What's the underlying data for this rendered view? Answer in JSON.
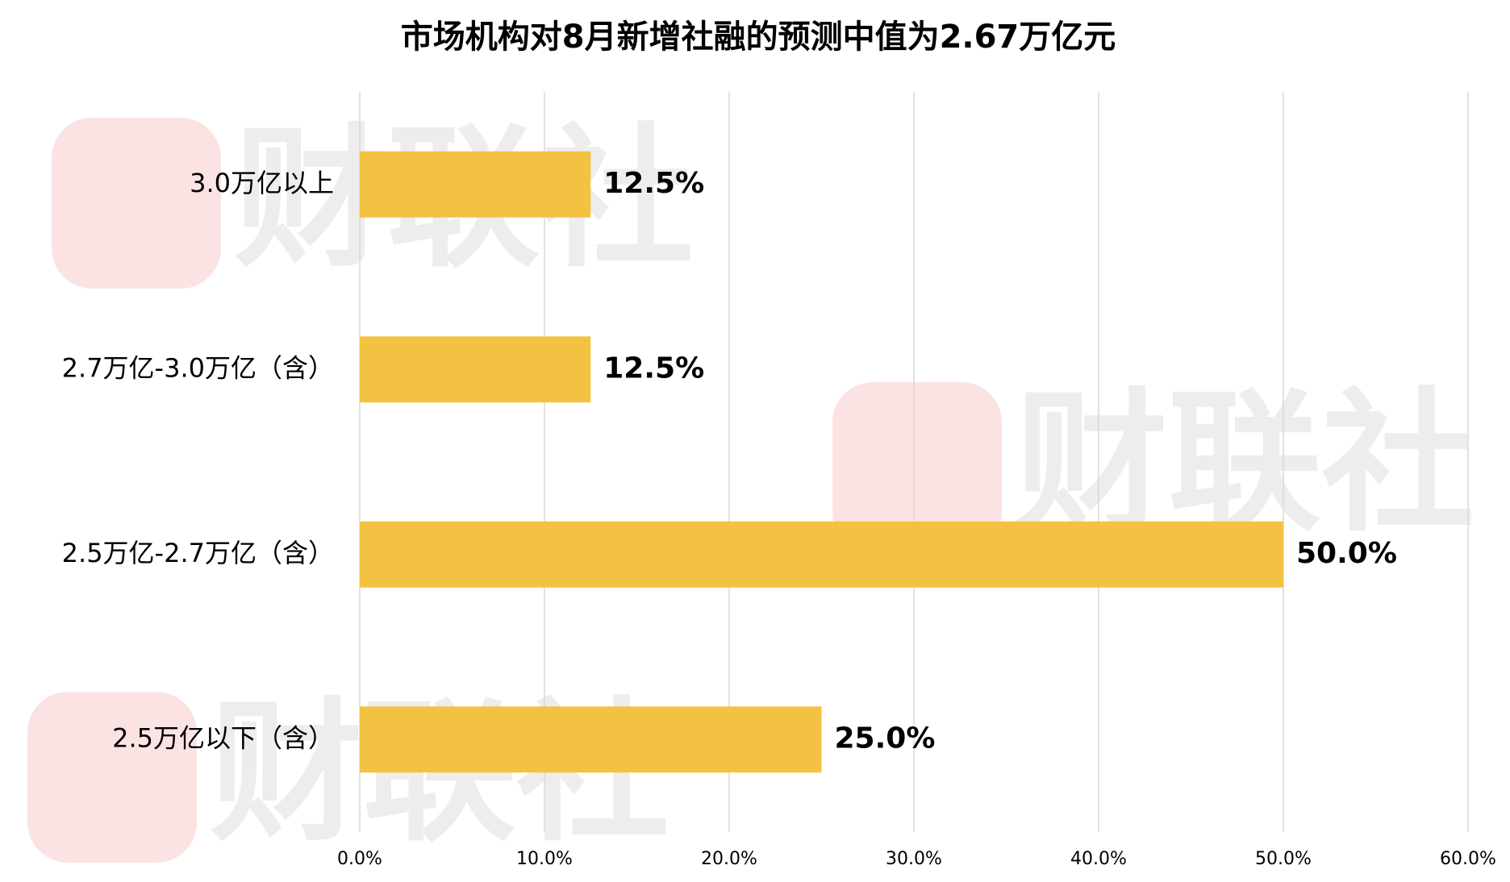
{
  "chart_data": {
    "type": "bar",
    "orientation": "horizontal",
    "title": "市场机构对8月新增社融的预测中值为2.67万亿元",
    "watermark": "财联社",
    "categories": [
      "3.0万亿以上",
      "2.7万亿-3.0万亿（含）",
      "2.5万亿-2.7万亿（含）",
      "2.5万亿以下（含）"
    ],
    "values": [
      12.5,
      12.5,
      50.0,
      25.0
    ],
    "value_labels": [
      "12.5%",
      "12.5%",
      "50.0%",
      "25.0%"
    ],
    "color": "#f4c242",
    "xlim": [
      0,
      60
    ],
    "xticks": [
      {
        "value": 0,
        "label": "0.0%"
      },
      {
        "value": 10,
        "label": "10.0%"
      },
      {
        "value": 20,
        "label": "20.0%"
      },
      {
        "value": 30,
        "label": "30.0%"
      },
      {
        "value": 40,
        "label": "40.0%"
      },
      {
        "value": 50,
        "label": "50.0%"
      },
      {
        "value": 60,
        "label": "60.0%"
      }
    ],
    "grid": true
  }
}
